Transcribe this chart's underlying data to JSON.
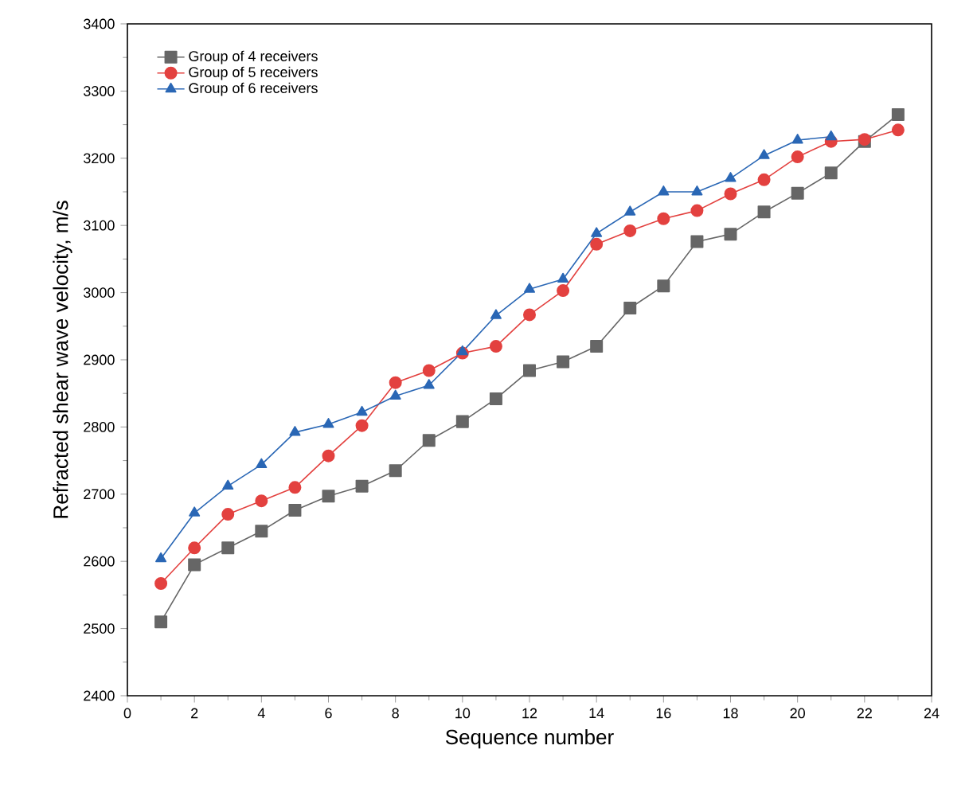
{
  "chart_data": {
    "type": "line",
    "xlabel": "Sequence number",
    "ylabel": "Refracted shear wave velocity, m/s",
    "xlim": [
      0,
      24
    ],
    "xticks": [
      0,
      2,
      4,
      6,
      8,
      10,
      12,
      14,
      16,
      18,
      20,
      22,
      24
    ],
    "ylim": [
      2400,
      3400
    ],
    "yticks": [
      2400,
      2500,
      2600,
      2700,
      2800,
      2900,
      3000,
      3100,
      3200,
      3300,
      3400
    ],
    "legend": "top left",
    "grid": false,
    "line_style": "solid",
    "series": [
      {
        "name": "Group of 4 receivers",
        "color": "#666666",
        "marker": "square",
        "x": [
          1,
          2,
          3,
          4,
          5,
          6,
          7,
          8,
          9,
          10,
          11,
          12,
          13,
          14,
          15,
          16,
          17,
          18,
          19,
          20,
          21,
          22,
          23
        ],
        "values": [
          2510,
          2595,
          2620,
          2645,
          2676,
          2697,
          2712,
          2735,
          2780,
          2808,
          2842,
          2884,
          2897,
          2920,
          2977,
          3010,
          3076,
          3087,
          3120,
          3148,
          3178,
          3225,
          3265
        ]
      },
      {
        "name": "Group of 5 receivers",
        "color": "#e3413f",
        "marker": "circle",
        "x": [
          1,
          2,
          3,
          4,
          5,
          6,
          7,
          8,
          9,
          10,
          11,
          12,
          13,
          14,
          15,
          16,
          17,
          18,
          19,
          20,
          21,
          22,
          23
        ],
        "values": [
          2567,
          2620,
          2670,
          2690,
          2710,
          2757,
          2802,
          2866,
          2884,
          2910,
          2920,
          2967,
          3003,
          3072,
          3092,
          3110,
          3122,
          3147,
          3168,
          3202,
          3225,
          3228,
          3242
        ]
      },
      {
        "name": "Group of 6 receivers",
        "color": "#2a67b5",
        "marker": "triangle",
        "x": [
          1,
          2,
          3,
          4,
          5,
          6,
          7,
          8,
          9,
          10,
          11,
          12,
          13,
          14,
          15,
          16,
          17,
          18,
          19,
          20,
          21
        ],
        "values": [
          2604,
          2672,
          2712,
          2744,
          2792,
          2804,
          2822,
          2846,
          2862,
          2912,
          2966,
          3005,
          3020,
          3088,
          3120,
          3150,
          3150,
          3170,
          3204,
          3227,
          3232
        ]
      }
    ]
  }
}
